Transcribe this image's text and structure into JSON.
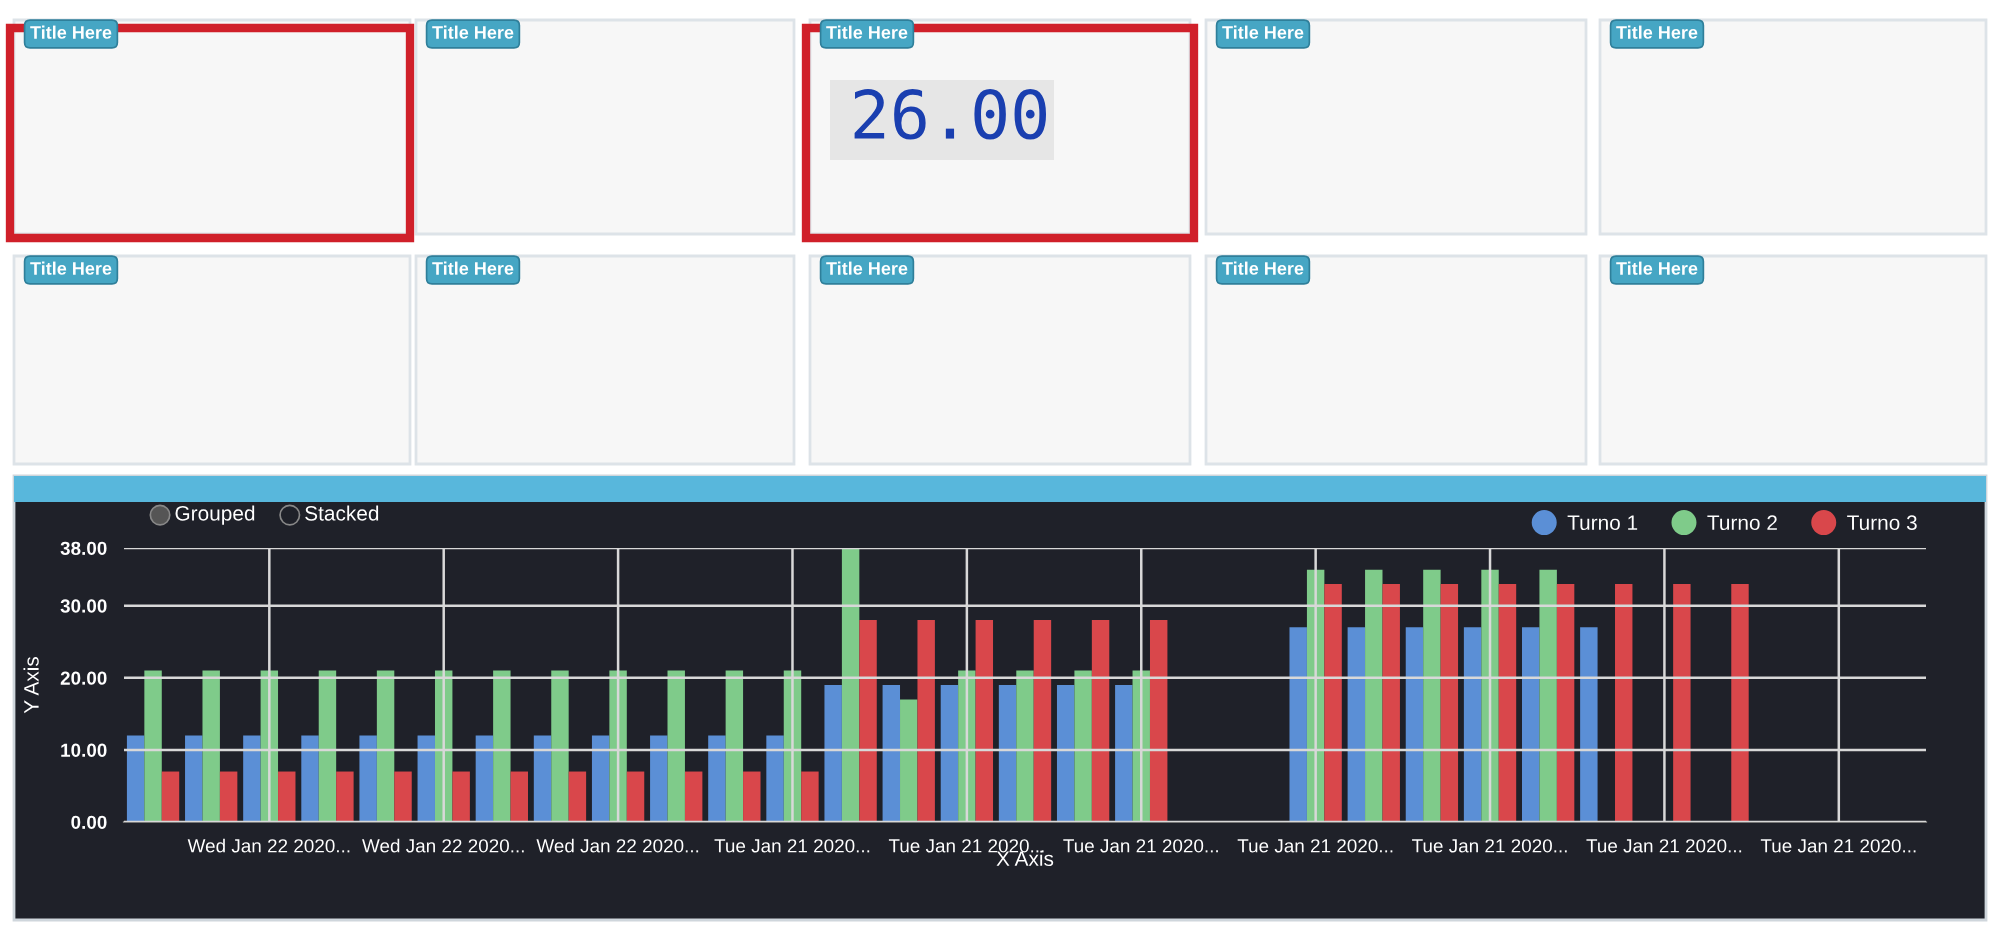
{
  "chart_data": [
    {
      "type": "other",
      "categories": [
        "Title Here",
        "Title Here",
        "Title Here",
        "Title Here",
        "Title Here",
        "Title Here",
        "Title Here",
        "Title Here",
        "Title Here",
        "Title Here"
      ],
      "value_labels": [
        null,
        null,
        "26.00",
        null,
        null,
        null,
        null,
        null,
        null,
        null
      ]
    },
    {
      "type": "bar",
      "xlabel": "X Axis",
      "ylabel": "Y Axis",
      "categories": [
        null,
        null,
        "Wed Jan 22 2020...",
        null,
        null,
        "Wed Jan 22 2020...",
        null,
        null,
        "Wed Jan 22 2020...",
        null,
        null,
        "Tue Jan 21 2020...",
        null,
        null,
        "Tue Jan 21 2020...",
        null,
        null,
        "Tue Jan 21 2020...",
        null,
        null,
        "Tue Jan 21 2020...",
        null,
        null,
        "Tue Jan 21 2020...",
        null,
        null,
        "Tue Jan 21 2020...",
        null,
        null,
        "Tue Jan 21 2020...",
        null
      ],
      "series": [
        {
          "name": "Turno 1",
          "color": "#5b8fd6",
          "values": [
            12,
            12,
            12,
            12,
            12,
            12,
            12,
            12,
            12,
            12,
            12,
            12,
            19,
            19,
            19,
            19,
            19,
            19,
            0,
            0,
            27,
            27,
            27,
            27,
            27,
            27,
            0,
            0,
            0,
            0,
            0
          ]
        },
        {
          "name": "Turno 2",
          "color": "#7fcb8a",
          "values": [
            21,
            21,
            21,
            21,
            21,
            21,
            21,
            21,
            21,
            21,
            21,
            21,
            38,
            17,
            21,
            21,
            21,
            21,
            0,
            0,
            35,
            35,
            35,
            35,
            35,
            0,
            0,
            0,
            0,
            0,
            0
          ]
        },
        {
          "name": "Turno 3",
          "color": "#d9474b",
          "values": [
            7,
            7,
            7,
            7,
            7,
            7,
            7,
            7,
            7,
            7,
            7,
            7,
            28,
            28,
            28,
            28,
            28,
            28,
            0,
            0,
            33,
            33,
            33,
            33,
            33,
            33,
            33,
            33,
            0,
            0,
            0
          ]
        }
      ],
      "ylim": [
        0,
        38
      ],
      "yticks": [
        {
          "value": 0,
          "label": "0.00"
        },
        {
          "value": 10,
          "label": "10.00"
        },
        {
          "value": 20,
          "label": "20.00"
        },
        {
          "value": 30,
          "label": "30.00"
        },
        {
          "value": 38,
          "label": "38.00"
        }
      ],
      "grid": true,
      "legend": "top right",
      "annotations": [
        "Grouped",
        "Stacked"
      ]
    }
  ]
}
